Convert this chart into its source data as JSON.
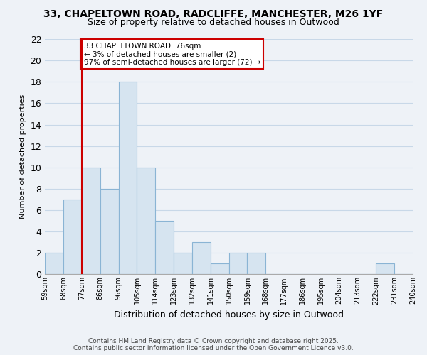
{
  "title1": "33, CHAPELTOWN ROAD, RADCLIFFE, MANCHESTER, M26 1YF",
  "title2": "Size of property relative to detached houses in Outwood",
  "xlabel": "Distribution of detached houses by size in Outwood",
  "ylabel": "Number of detached properties",
  "bar_color": "#d6e4f0",
  "bar_edge_color": "#8ab4d4",
  "grid_color": "#c8d8e8",
  "bg_color": "#eef2f7",
  "bin_labels": [
    "59sqm",
    "68sqm",
    "77sqm",
    "86sqm",
    "96sqm",
    "105sqm",
    "114sqm",
    "123sqm",
    "132sqm",
    "141sqm",
    "150sqm",
    "159sqm",
    "168sqm",
    "177sqm",
    "186sqm",
    "195sqm",
    "204sqm",
    "213sqm",
    "222sqm",
    "231sqm",
    "240sqm"
  ],
  "bar_values": [
    2,
    7,
    10,
    8,
    18,
    10,
    5,
    2,
    3,
    1,
    2,
    2,
    0,
    0,
    0,
    0,
    0,
    0,
    1,
    0
  ],
  "num_bins": 20,
  "ylim": [
    0,
    22
  ],
  "yticks": [
    0,
    2,
    4,
    6,
    8,
    10,
    12,
    14,
    16,
    18,
    20,
    22
  ],
  "property_line_bin": 2,
  "annotation_title": "33 CHAPELTOWN ROAD: 76sqm",
  "annotation_line1": "← 3% of detached houses are smaller (2)",
  "annotation_line2": "97% of semi-detached houses are larger (72) →",
  "annotation_box_color": "#ffffff",
  "annotation_box_edge": "#cc0000",
  "property_line_color": "#cc0000",
  "footer1": "Contains HM Land Registry data © Crown copyright and database right 2025.",
  "footer2": "Contains public sector information licensed under the Open Government Licence v3.0."
}
